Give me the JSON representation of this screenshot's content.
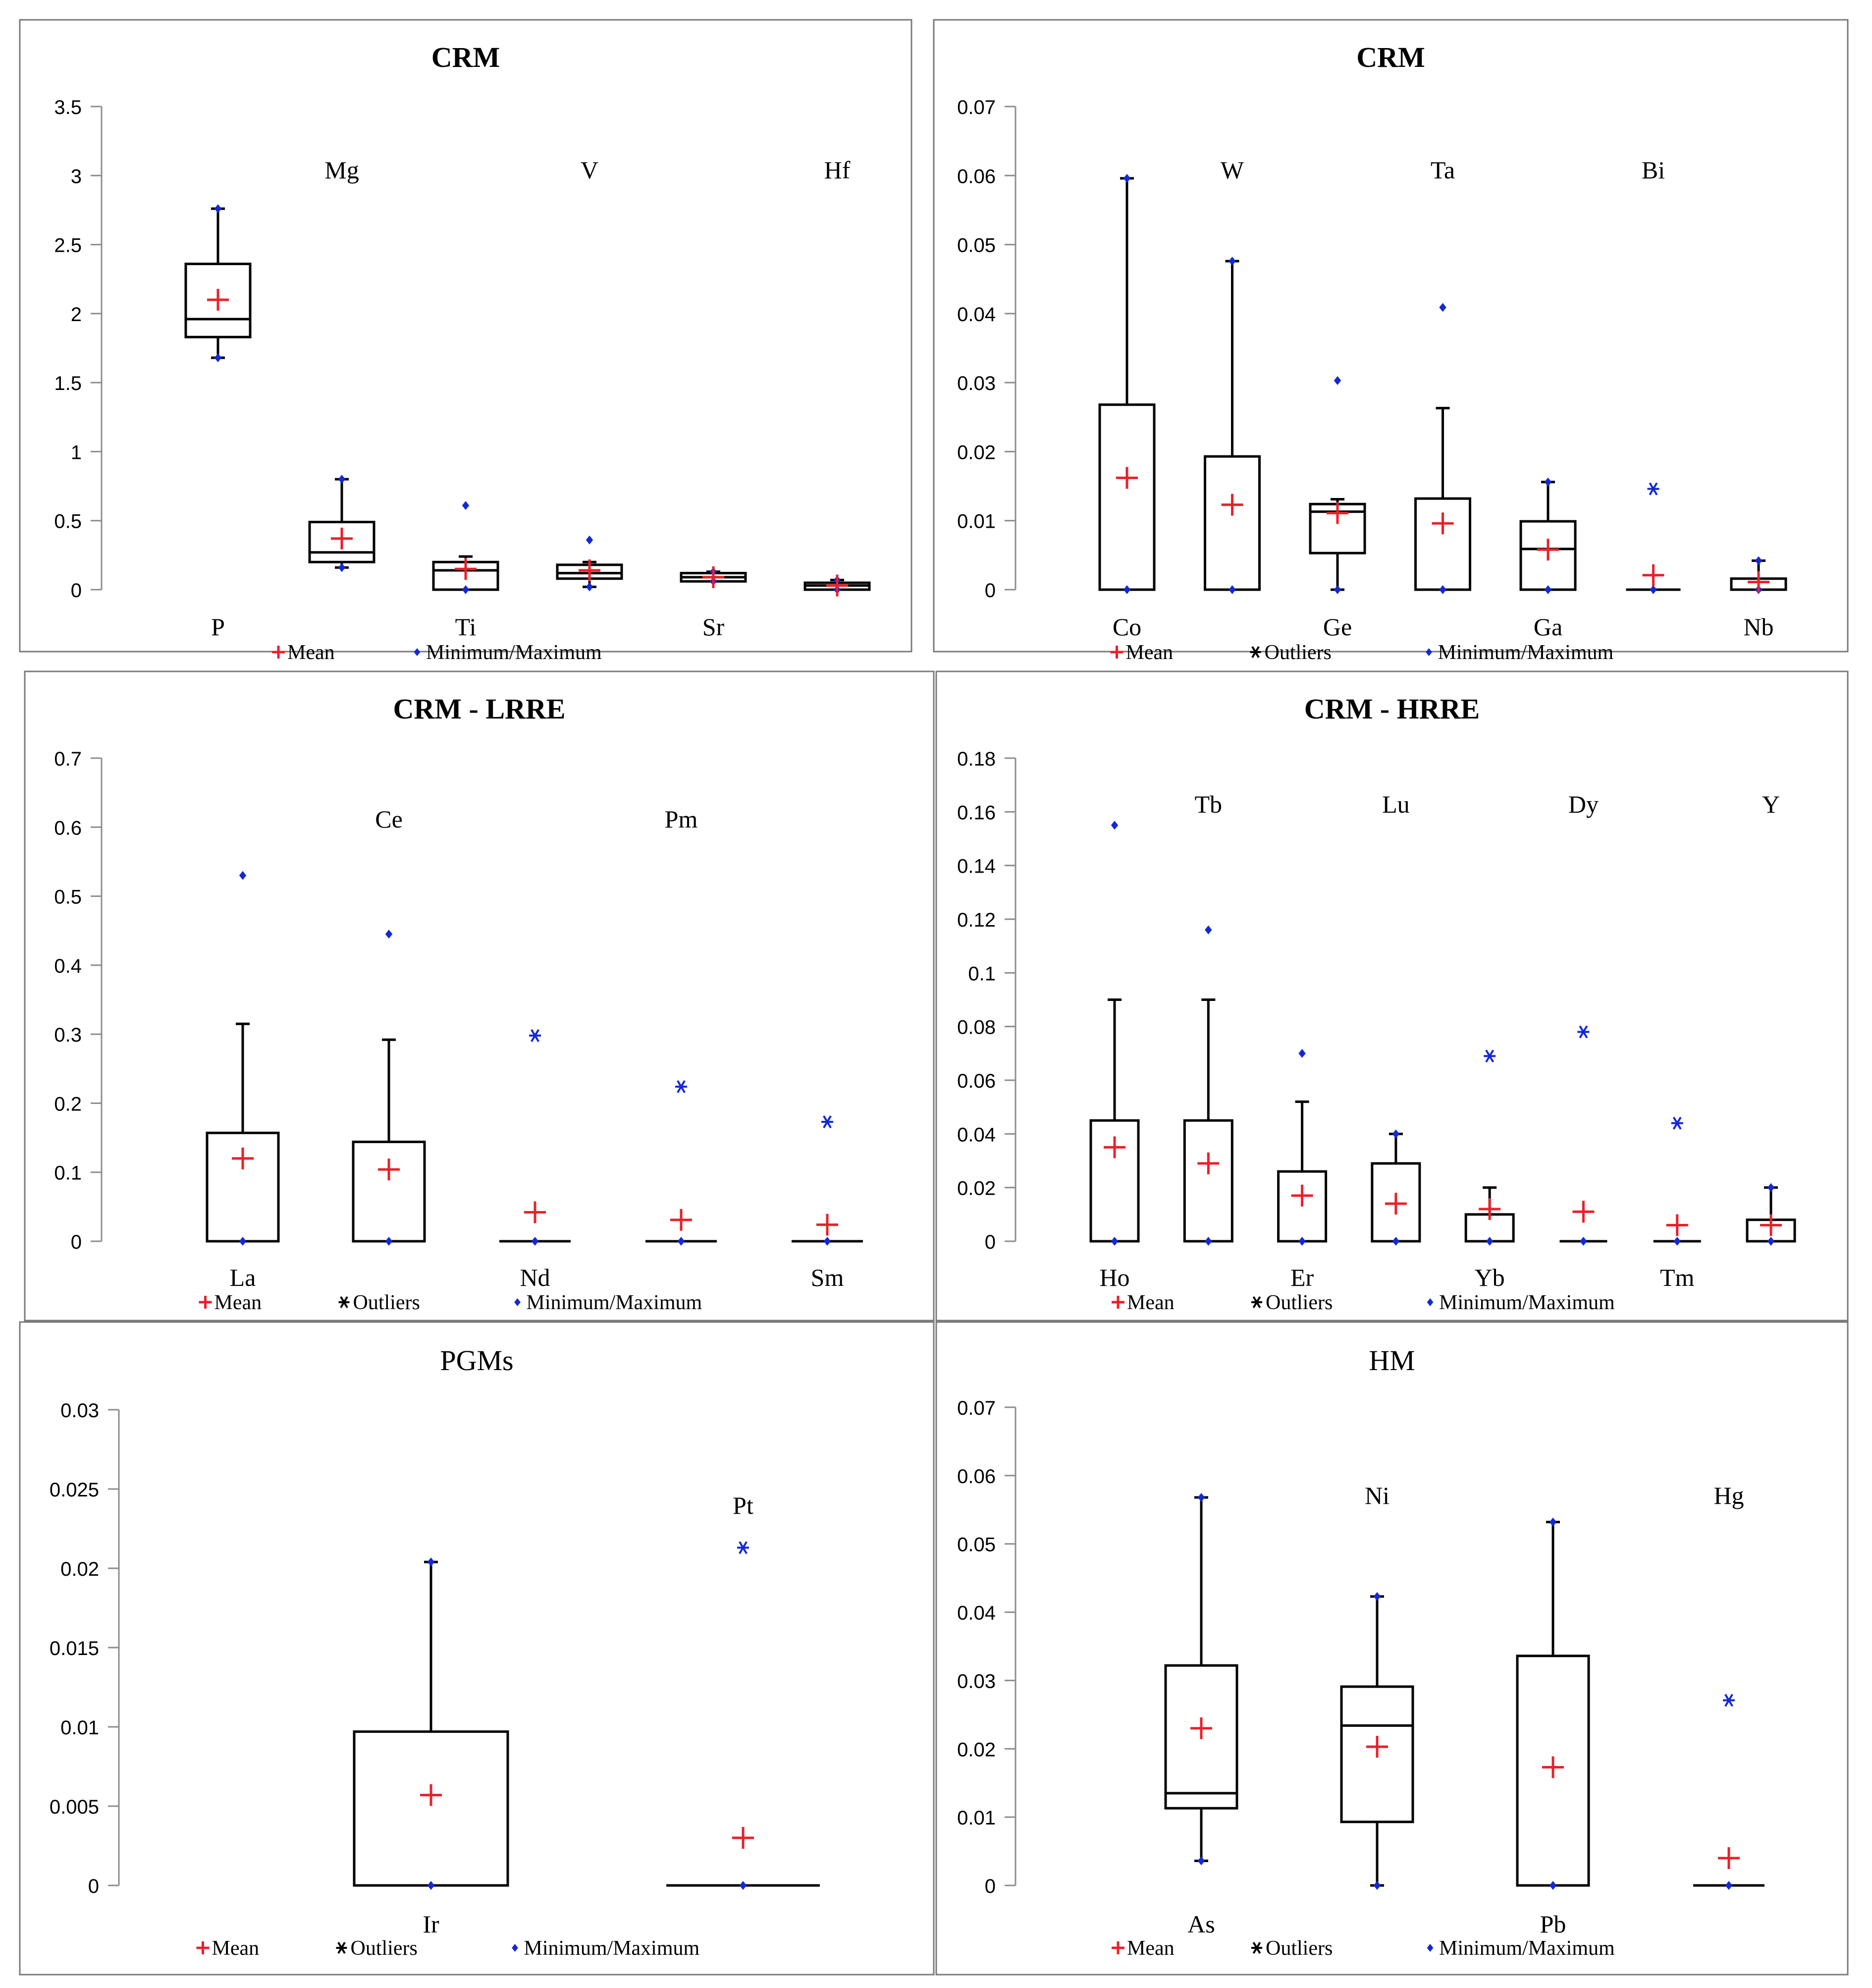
{
  "colors": {
    "mean": "#e8202a",
    "marker": "#1428d6",
    "box": "#000000",
    "axis": "#8c8c8c",
    "panel_border": "#7a7a7a"
  },
  "legend_labels": {
    "mean": "Mean",
    "outliers": "Outliers",
    "minmax": "Minimum/Maximum"
  },
  "chart_data": [
    {
      "type": "box",
      "title": "CRM",
      "title_bold": true,
      "ylim": [
        0,
        3.5
      ],
      "yticks": [
        "0",
        "0.5",
        "1",
        "1.5",
        "2",
        "2.5",
        "3",
        "3.5"
      ],
      "legend": [
        "mean",
        "minmax"
      ],
      "categories": [
        {
          "label": "P",
          "label_pos": "bottom",
          "min": 1.68,
          "q1": 1.83,
          "median": 1.96,
          "q3": 2.36,
          "max": 2.76,
          "mean": 2.1,
          "whisker_low": 1.68,
          "whisker_high": 2.76,
          "outliers": []
        },
        {
          "label": "Mg",
          "label_pos": "top",
          "min": 0.16,
          "q1": 0.2,
          "median": 0.27,
          "q3": 0.49,
          "max": 0.8,
          "mean": 0.37,
          "whisker_low": 0.16,
          "whisker_high": 0.8,
          "outliers": []
        },
        {
          "label": "Ti",
          "label_pos": "bottom",
          "min": 0.0,
          "q1": 0.0,
          "median": 0.14,
          "q3": 0.2,
          "max": 0.61,
          "mean": 0.15,
          "whisker_low": 0.0,
          "whisker_high": 0.24,
          "outliers": []
        },
        {
          "label": "V",
          "label_pos": "top",
          "min": 0.02,
          "q1": 0.08,
          "median": 0.12,
          "q3": 0.18,
          "max": 0.36,
          "mean": 0.14,
          "whisker_low": 0.02,
          "whisker_high": 0.2,
          "outliers": []
        },
        {
          "label": "Sr",
          "label_pos": "bottom",
          "min": 0.06,
          "q1": 0.06,
          "median": 0.09,
          "q3": 0.12,
          "max": 0.13,
          "mean": 0.09,
          "whisker_low": 0.06,
          "whisker_high": 0.13,
          "outliers": []
        },
        {
          "label": "Hf",
          "label_pos": "top",
          "min": 0.0,
          "q1": 0.0,
          "median": 0.03,
          "q3": 0.05,
          "max": 0.07,
          "mean": 0.03,
          "whisker_low": 0.0,
          "whisker_high": 0.07,
          "outliers": []
        }
      ]
    },
    {
      "type": "box",
      "title": "CRM",
      "title_bold": true,
      "ylim": [
        0,
        0.07
      ],
      "yticks": [
        "0",
        "0.01",
        "0.02",
        "0.03",
        "0.04",
        "0.05",
        "0.06",
        "0.07"
      ],
      "legend": [
        "mean",
        "outliers",
        "minmax"
      ],
      "categories": [
        {
          "label": "Co",
          "label_pos": "bottom",
          "min": 0.0,
          "q1": 0.0,
          "median": 0.0,
          "q3": 0.0268,
          "max": 0.0596,
          "mean": 0.0162,
          "whisker_low": 0.0,
          "whisker_high": 0.0596,
          "outliers": []
        },
        {
          "label": "W",
          "label_pos": "top",
          "min": 0.0,
          "q1": 0.0,
          "median": 0.0,
          "q3": 0.0193,
          "max": 0.0476,
          "mean": 0.0123,
          "whisker_low": 0.0,
          "whisker_high": 0.0476,
          "outliers": []
        },
        {
          "label": "Ge",
          "label_pos": "bottom",
          "min": 0.0,
          "q1": 0.0053,
          "median": 0.0113,
          "q3": 0.0124,
          "max": 0.0303,
          "mean": 0.0111,
          "whisker_low": 0.0,
          "whisker_high": 0.0131,
          "outliers": []
        },
        {
          "label": "Ta",
          "label_pos": "top",
          "min": 0.0,
          "q1": 0.0,
          "median": 0.0,
          "q3": 0.0132,
          "max": 0.0409,
          "mean": 0.0096,
          "whisker_low": 0.0,
          "whisker_high": 0.0263,
          "outliers": []
        },
        {
          "label": "Ga",
          "label_pos": "bottom",
          "min": 0.0,
          "q1": 0.0,
          "median": 0.0059,
          "q3": 0.0099,
          "max": 0.0156,
          "mean": 0.0058,
          "whisker_low": 0.0,
          "whisker_high": 0.0156,
          "outliers": []
        },
        {
          "label": "Bi",
          "label_pos": "top",
          "min": 0.0,
          "q1": 0.0,
          "median": 0.0,
          "q3": 0.0,
          "max": null,
          "mean": 0.0021,
          "whisker_low": 0.0,
          "whisker_high": 0.0,
          "outliers": [
            0.0146
          ]
        },
        {
          "label": "Nb",
          "label_pos": "bottom",
          "min": 0.0,
          "q1": 0.0,
          "median": 0.0,
          "q3": 0.0016,
          "max": 0.0042,
          "mean": 0.0011,
          "whisker_low": 0.0,
          "whisker_high": 0.0042,
          "outliers": []
        }
      ]
    },
    {
      "type": "box",
      "title": "CRM - LRRE",
      "title_bold": true,
      "ylim": [
        0,
        0.7
      ],
      "yticks": [
        "0",
        "0.1",
        "0.2",
        "0.3",
        "0.4",
        "0.5",
        "0.6",
        "0.7"
      ],
      "legend": [
        "mean",
        "outliers",
        "minmax"
      ],
      "categories": [
        {
          "label": "La",
          "label_pos": "bottom",
          "min": 0.0,
          "q1": 0.0,
          "median": 0.0,
          "q3": 0.157,
          "max": 0.53,
          "mean": 0.12,
          "whisker_low": 0.0,
          "whisker_high": 0.315,
          "outliers": []
        },
        {
          "label": "Ce",
          "label_pos": "top",
          "min": 0.0,
          "q1": 0.0,
          "median": 0.0,
          "q3": 0.144,
          "max": 0.445,
          "mean": 0.104,
          "whisker_low": 0.0,
          "whisker_high": 0.292,
          "outliers": []
        },
        {
          "label": "Nd",
          "label_pos": "bottom",
          "min": 0.0,
          "q1": 0.0,
          "median": 0.0,
          "q3": 0.0,
          "max": null,
          "mean": 0.042,
          "whisker_low": 0.0,
          "whisker_high": 0.0,
          "outliers": [
            0.298
          ]
        },
        {
          "label": "Pm",
          "label_pos": "top",
          "min": 0.0,
          "q1": 0.0,
          "median": 0.0,
          "q3": 0.0,
          "max": null,
          "mean": 0.031,
          "whisker_low": 0.0,
          "whisker_high": 0.0,
          "outliers": [
            0.224
          ]
        },
        {
          "label": "Sm",
          "label_pos": "bottom",
          "min": 0.0,
          "q1": 0.0,
          "median": 0.0,
          "q3": 0.0,
          "max": null,
          "mean": 0.024,
          "whisker_low": 0.0,
          "whisker_high": 0.0,
          "outliers": [
            0.173
          ]
        }
      ]
    },
    {
      "type": "box",
      "title": "CRM - HRRE",
      "title_bold": true,
      "ylim": [
        0,
        0.18
      ],
      "yticks": [
        "0",
        "0.02",
        "0.04",
        "0.06",
        "0.08",
        "0.1",
        "0.12",
        "0.14",
        "0.16",
        "0.18"
      ],
      "legend": [
        "mean",
        "outliers",
        "minmax"
      ],
      "categories": [
        {
          "label": "Ho",
          "label_pos": "bottom",
          "min": 0.0,
          "q1": 0.0,
          "median": 0.0,
          "q3": 0.045,
          "max": 0.155,
          "mean": 0.035,
          "whisker_low": 0.0,
          "whisker_high": 0.09,
          "outliers": []
        },
        {
          "label": "Tb",
          "label_pos": "top",
          "min": 0.0,
          "q1": 0.0,
          "median": 0.0,
          "q3": 0.045,
          "max": 0.116,
          "mean": 0.029,
          "whisker_low": 0.0,
          "whisker_high": 0.09,
          "outliers": []
        },
        {
          "label": "Er",
          "label_pos": "bottom",
          "min": 0.0,
          "q1": 0.0,
          "median": 0.0,
          "q3": 0.026,
          "max": 0.07,
          "mean": 0.017,
          "whisker_low": 0.0,
          "whisker_high": 0.052,
          "outliers": []
        },
        {
          "label": "Lu",
          "label_pos": "top",
          "min": 0.0,
          "q1": 0.0,
          "median": 0.0,
          "q3": 0.029,
          "max": 0.04,
          "mean": 0.014,
          "whisker_low": 0.0,
          "whisker_high": 0.04,
          "outliers": []
        },
        {
          "label": "Yb",
          "label_pos": "bottom",
          "min": 0.0,
          "q1": 0.0,
          "median": 0.0,
          "q3": 0.01,
          "max": null,
          "mean": 0.012,
          "whisker_low": 0.0,
          "whisker_high": 0.02,
          "outliers": [
            0.069
          ]
        },
        {
          "label": "Dy",
          "label_pos": "top",
          "min": 0.0,
          "q1": 0.0,
          "median": 0.0,
          "q3": 0.0,
          "max": null,
          "mean": 0.011,
          "whisker_low": 0.0,
          "whisker_high": 0.0,
          "outliers": [
            0.078
          ]
        },
        {
          "label": "Tm",
          "label_pos": "bottom",
          "min": 0.0,
          "q1": 0.0,
          "median": 0.0,
          "q3": 0.0,
          "max": null,
          "mean": 0.006,
          "whisker_low": 0.0,
          "whisker_high": 0.0,
          "outliers": [
            0.044
          ]
        },
        {
          "label": "Y",
          "label_pos": "top",
          "min": 0.0,
          "q1": 0.0,
          "median": 0.0,
          "q3": 0.008,
          "max": 0.02,
          "mean": 0.006,
          "whisker_low": 0.0,
          "whisker_high": 0.02,
          "outliers": []
        }
      ]
    },
    {
      "type": "box",
      "title": "PGMs",
      "title_bold": false,
      "ylim": [
        0,
        0.03
      ],
      "yticks": [
        "0",
        "0.005",
        "0.01",
        "0.015",
        "0.02",
        "0.025",
        "0.03"
      ],
      "legend": [
        "mean",
        "outliers",
        "minmax"
      ],
      "categories": [
        {
          "label": "Ir",
          "label_pos": "bottom",
          "min": 0.0,
          "q1": 0.0,
          "median": 0.0,
          "q3": 0.0097,
          "max": 0.0204,
          "mean": 0.0057,
          "whisker_low": 0.0,
          "whisker_high": 0.0204,
          "outliers": []
        },
        {
          "label": "Pt",
          "label_pos": "top",
          "min": 0.0,
          "q1": 0.0,
          "median": 0.0,
          "q3": 0.0,
          "max": null,
          "mean": 0.003,
          "whisker_low": 0.0,
          "whisker_high": 0.0,
          "outliers": [
            0.0213
          ]
        }
      ]
    },
    {
      "type": "box",
      "title": "HM",
      "title_bold": false,
      "ylim": [
        0,
        0.07
      ],
      "yticks": [
        "0",
        "0.01",
        "0.02",
        "0.03",
        "0.04",
        "0.05",
        "0.06",
        "0.07"
      ],
      "legend": [
        "mean",
        "outliers",
        "minmax"
      ],
      "categories": [
        {
          "label": "As",
          "label_pos": "bottom",
          "min": 0.0036,
          "q1": 0.0113,
          "median": 0.0135,
          "q3": 0.0322,
          "max": 0.0568,
          "mean": 0.023,
          "whisker_low": 0.0036,
          "whisker_high": 0.0568,
          "outliers": []
        },
        {
          "label": "Ni",
          "label_pos": "top",
          "min": 0.0,
          "q1": 0.0093,
          "median": 0.0234,
          "q3": 0.0291,
          "max": 0.0423,
          "mean": 0.0203,
          "whisker_low": 0.0,
          "whisker_high": 0.0423,
          "outliers": []
        },
        {
          "label": "Pb",
          "label_pos": "bottom",
          "min": 0.0,
          "q1": 0.0,
          "median": 0.0,
          "q3": 0.0336,
          "max": 0.0532,
          "mean": 0.0173,
          "whisker_low": 0.0,
          "whisker_high": 0.0532,
          "outliers": []
        },
        {
          "label": "Hg",
          "label_pos": "top",
          "min": 0.0,
          "q1": 0.0,
          "median": 0.0,
          "q3": 0.0,
          "max": null,
          "mean": 0.004,
          "whisker_low": 0.0,
          "whisker_high": 0.0,
          "outliers": [
            0.0271
          ]
        }
      ]
    }
  ]
}
